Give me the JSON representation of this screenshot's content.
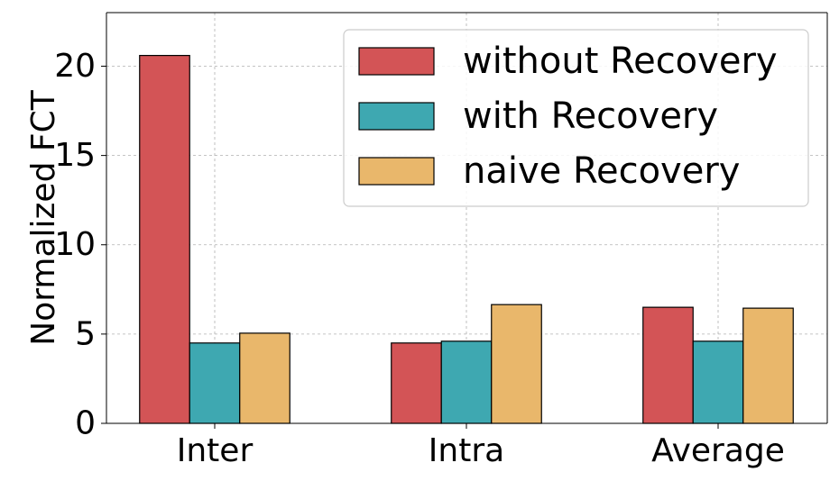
{
  "chart_data": {
    "type": "bar",
    "categories": [
      "Inter",
      "Intra",
      "Average"
    ],
    "series": [
      {
        "name": "without Recovery",
        "values": [
          20.6,
          4.5,
          6.5
        ],
        "color": "#d35456"
      },
      {
        "name": "with Recovery",
        "values": [
          4.5,
          4.6,
          4.6
        ],
        "color": "#3ea8b1"
      },
      {
        "name": "naive Recovery",
        "values": [
          5.05,
          6.65,
          6.45
        ],
        "color": "#e9b76b"
      }
    ],
    "title": "",
    "xlabel": "",
    "ylabel": "Normalized FCT",
    "ylim": [
      0,
      23
    ],
    "yticks": [
      0,
      5,
      10,
      15,
      20
    ],
    "grid": true,
    "legend_position": "top-right"
  }
}
